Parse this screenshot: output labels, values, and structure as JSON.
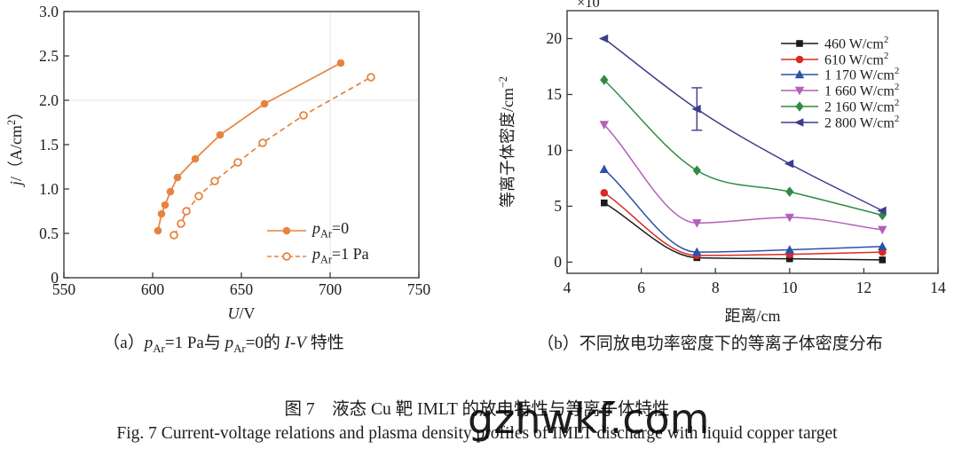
{
  "watermark": "gzhwkf.com",
  "figure": {
    "caption_zh": "图 7　液态 Cu 靶 IMLT 的放电特性与等离子体特性",
    "caption_en": "Fig. 7    Current-voltage relations and plasma density profiles of IMLT discharge with liquid copper target"
  },
  "chart_data": [
    {
      "id": "a",
      "type": "line",
      "caption": "（a）*p*~{Ar}=1 Pa与 *p*~{Ar}=0的 *I-V* 特性",
      "xlabel": "*U*/V",
      "ylabel": "*j*/（A/cm^{2}）",
      "xlim": [
        550,
        750
      ],
      "ylim": [
        0,
        3
      ],
      "xticks": [
        "550",
        "600",
        "650",
        "700",
        "750"
      ],
      "xtick_values": [
        550,
        600,
        650,
        700,
        750
      ],
      "yticks": [
        "0",
        "0.5",
        "1.0",
        "1.5",
        "2.0",
        "2.5",
        "3.0"
      ],
      "ytick_values": [
        0,
        0.5,
        1.0,
        1.5,
        2.0,
        2.5,
        3.0
      ],
      "grid_x": [
        700
      ],
      "grid_y": [
        2.0
      ],
      "legend_position": "inside lower right",
      "series": [
        {
          "name": "*p*~{Ar}=1 Pa",
          "color": "#E7833F",
          "line": "dashed",
          "marker": "circle-open",
          "x": [
            612,
            616,
            619,
            626,
            635,
            648,
            662,
            685,
            723
          ],
          "y": [
            0.48,
            0.61,
            0.75,
            0.92,
            1.09,
            1.3,
            1.52,
            1.83,
            2.26
          ]
        },
        {
          "name": "*p*~{Ar}=0",
          "color": "#E7833F",
          "line": "solid",
          "marker": "circle",
          "x": [
            603,
            605,
            607,
            610,
            614,
            624,
            638,
            663,
            706
          ],
          "y": [
            0.53,
            0.72,
            0.82,
            0.97,
            1.13,
            1.34,
            1.61,
            1.96,
            2.42
          ]
        }
      ]
    },
    {
      "id": "b",
      "type": "line",
      "caption": "（b）不同放电功率密度下的等离子体密度分布",
      "xlabel": "距离/cm",
      "ylabel": "等离子体密度/cm^{−2}",
      "scale_multiplier": "×10",
      "xlim": [
        4,
        14
      ],
      "ylim": [
        -1.0,
        22.5
      ],
      "xticks": [
        "4",
        "6",
        "8",
        "10",
        "12",
        "14"
      ],
      "xtick_values": [
        4,
        6,
        8,
        10,
        12,
        14
      ],
      "yticks": [
        "0",
        "5",
        "10",
        "15",
        "20"
      ],
      "ytick_values": [
        0,
        5,
        10,
        15,
        20
      ],
      "legend_position": "inside upper right",
      "x": [
        5,
        7.5,
        10,
        12.5
      ],
      "series": [
        {
          "name": "460 W/cm^{2}",
          "color": "#1a1a1a",
          "marker": "square",
          "y": [
            5.3,
            0.4,
            0.3,
            0.2
          ]
        },
        {
          "name": "610 W/cm^{2}",
          "color": "#D92B20",
          "marker": "circle",
          "y": [
            6.2,
            0.6,
            0.7,
            0.9
          ]
        },
        {
          "name": "1 170 W/cm^{2}",
          "color": "#2B52A8",
          "marker": "triangle-up",
          "y": [
            8.3,
            0.9,
            1.1,
            1.4
          ]
        },
        {
          "name": "1 660 W/cm^{2}",
          "color": "#B45FB8",
          "marker": "triangle-down",
          "y": [
            12.3,
            3.5,
            4.0,
            2.9
          ]
        },
        {
          "name": "2 160 W/cm^{2}",
          "color": "#2E8B44",
          "marker": "diamond",
          "y": [
            16.3,
            8.2,
            6.3,
            4.2
          ]
        },
        {
          "name": "2 800 W/cm^{2}",
          "color": "#3D3D8F",
          "marker": "triangle-left",
          "y": [
            20.0,
            13.7,
            8.8,
            4.6
          ],
          "error_bar": {
            "x": 7.5,
            "low": 11.8,
            "high": 15.6
          }
        }
      ]
    }
  ]
}
